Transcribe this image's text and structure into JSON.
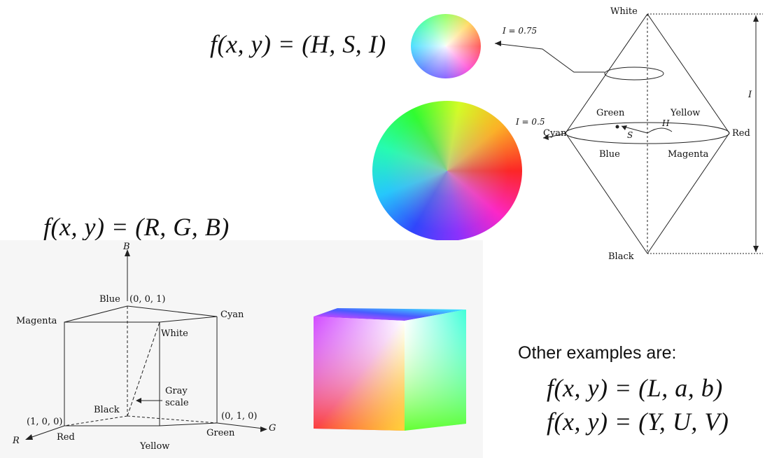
{
  "equations": {
    "hsi": "f(x, y) = (H, S, I)",
    "rgb": "f(x, y) = (R, G, B)",
    "lab": "f(x, y) = (L, a, b)",
    "yuv": "f(x, y) = (Y, U, V)"
  },
  "other_label": "Other examples are:",
  "hsi_model": {
    "white": "White",
    "black": "Black",
    "green": "Green",
    "yellow": "Yellow",
    "cyan": "Cyan",
    "red": "Red",
    "blue": "Blue",
    "magenta": "Magenta",
    "i_075": "I = 0.75",
    "i_05": "I = 0.5",
    "h": "H",
    "s": "S",
    "i_axis": "I"
  },
  "rgb_model": {
    "b_axis": "B",
    "r_axis": "R",
    "g_axis": "G",
    "blue": "Blue",
    "blue_coord": "(0, 0, 1)",
    "magenta": "Magenta",
    "cyan": "Cyan",
    "white": "White",
    "gray": "Gray",
    "scale": "scale",
    "black": "Black",
    "red_coord": "(1, 0, 0)",
    "green_coord": "(0, 1, 0)",
    "red": "Red",
    "green": "Green",
    "yellow": "Yellow"
  }
}
